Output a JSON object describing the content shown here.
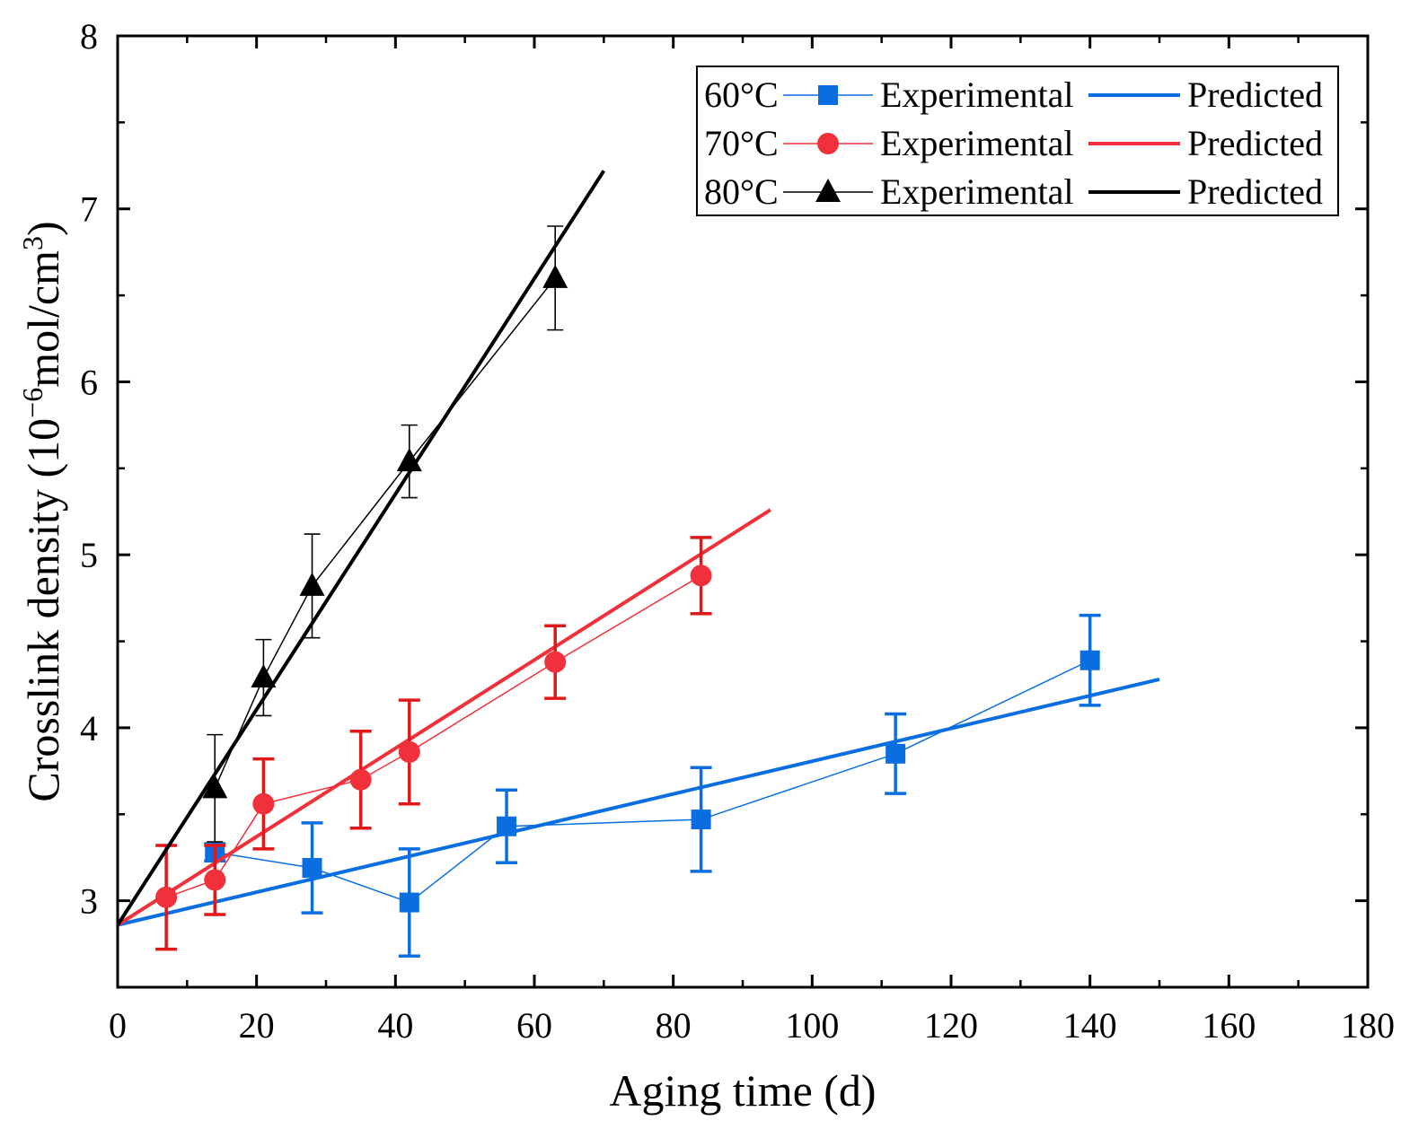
{
  "chart_data": {
    "type": "line",
    "title": "",
    "xlabel": "Aging time (d)",
    "ylabel_main": "Crosslink density (10",
    "ylabel_sup1": "−6",
    "ylabel_mid": "mol/cm",
    "ylabel_sup2": "3",
    "ylabel_end": ")",
    "xlim": [
      0,
      180
    ],
    "ylim": [
      2.5,
      8
    ],
    "xticks": [
      0,
      20,
      40,
      60,
      80,
      100,
      120,
      140,
      160,
      180
    ],
    "yticks": [
      3,
      4,
      5,
      6,
      7,
      8
    ],
    "grid": false,
    "legend_position": "top-right",
    "series": [
      {
        "name": "60°C",
        "color": "#0a6ee0",
        "marker": "square",
        "experimental_label": "Experimental",
        "predicted_label": "Predicted",
        "x": [
          14,
          28,
          42,
          56,
          84,
          112,
          140
        ],
        "y": [
          3.28,
          3.19,
          2.99,
          3.43,
          3.47,
          3.85,
          4.39
        ],
        "err": [
          0.05,
          0.26,
          0.31,
          0.21,
          0.3,
          0.23,
          0.26
        ],
        "predicted": {
          "x": [
            0,
            150
          ],
          "y": [
            2.86,
            4.28
          ]
        }
      },
      {
        "name": "70°C",
        "color": "#f0303a",
        "error_color": "#e01818",
        "marker": "circle",
        "experimental_label": "Experimental",
        "predicted_label": "Predicted",
        "x": [
          7,
          14,
          21,
          35,
          42,
          63,
          84
        ],
        "y": [
          3.02,
          3.12,
          3.56,
          3.7,
          3.86,
          4.38,
          4.88
        ],
        "err": [
          0.3,
          0.2,
          0.26,
          0.28,
          0.3,
          0.21,
          0.22
        ],
        "predicted": {
          "x": [
            0,
            94
          ],
          "y": [
            2.86,
            5.26
          ]
        }
      },
      {
        "name": "80°C",
        "color": "#000000",
        "marker": "triangle",
        "experimental_label": "Experimental",
        "predicted_label": "Predicted",
        "x": [
          14,
          21,
          28,
          42,
          63
        ],
        "y": [
          3.65,
          4.29,
          4.82,
          5.54,
          6.6
        ],
        "err": [
          0.31,
          0.22,
          0.3,
          0.21,
          0.3
        ],
        "predicted": {
          "x": [
            0,
            70
          ],
          "y": [
            2.86,
            7.22
          ]
        }
      }
    ]
  }
}
